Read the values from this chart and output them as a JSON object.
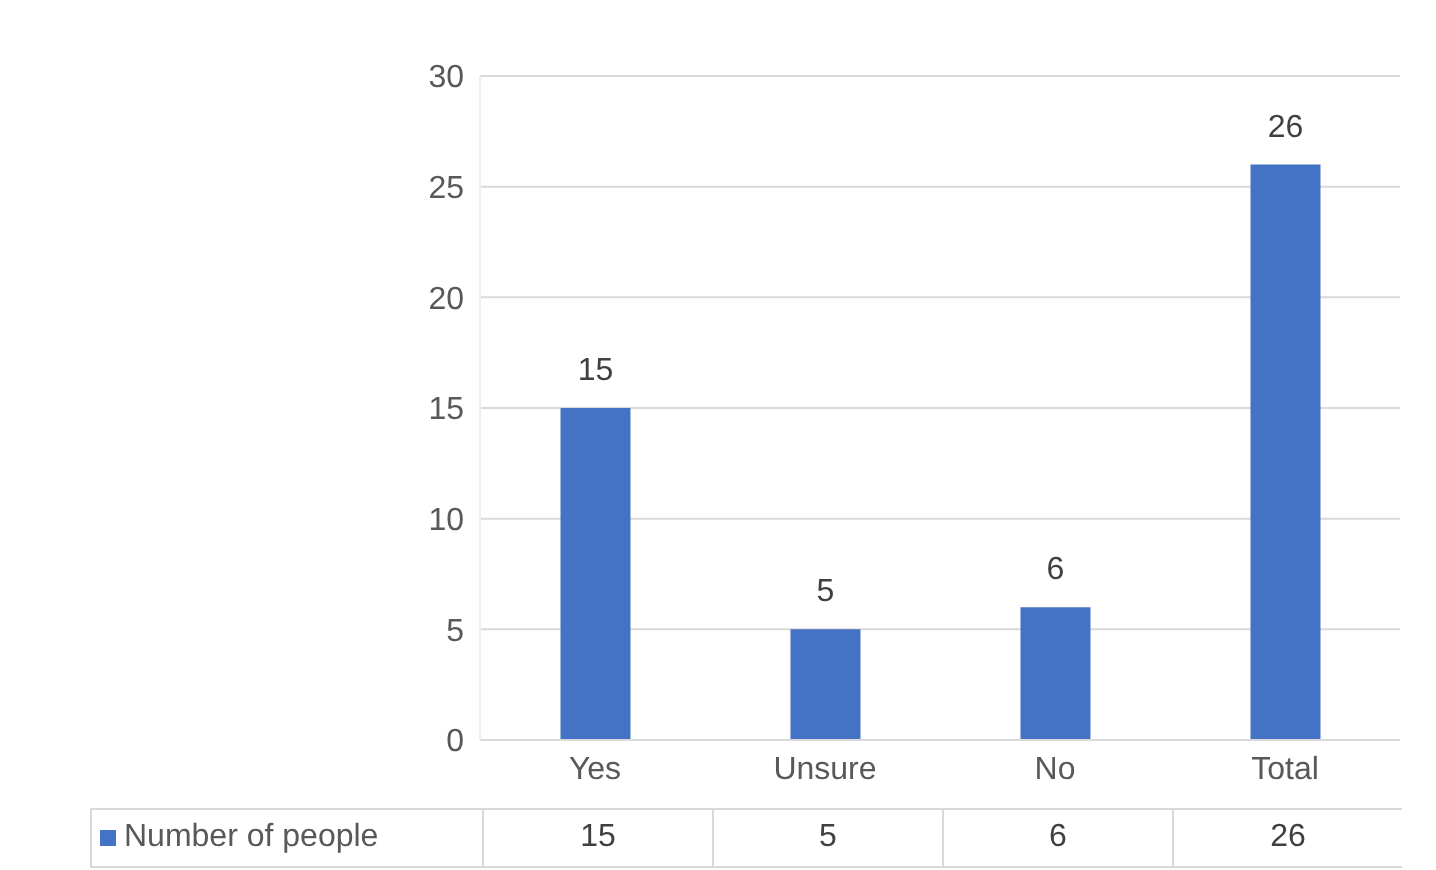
{
  "chart_data": {
    "type": "bar",
    "categories": [
      "Yes",
      "Unsure",
      "No",
      "Total"
    ],
    "series": [
      {
        "name": "Number of people",
        "color": "#4472c4",
        "values": [
          15,
          5,
          6,
          26
        ]
      }
    ],
    "ylim": [
      0,
      30
    ],
    "yticks": [
      0,
      5,
      10,
      15,
      20,
      25,
      30
    ],
    "grid": "y",
    "data_labels": true,
    "legend": "bottom",
    "annotations": [
      "15",
      "5",
      "6",
      "26"
    ]
  }
}
